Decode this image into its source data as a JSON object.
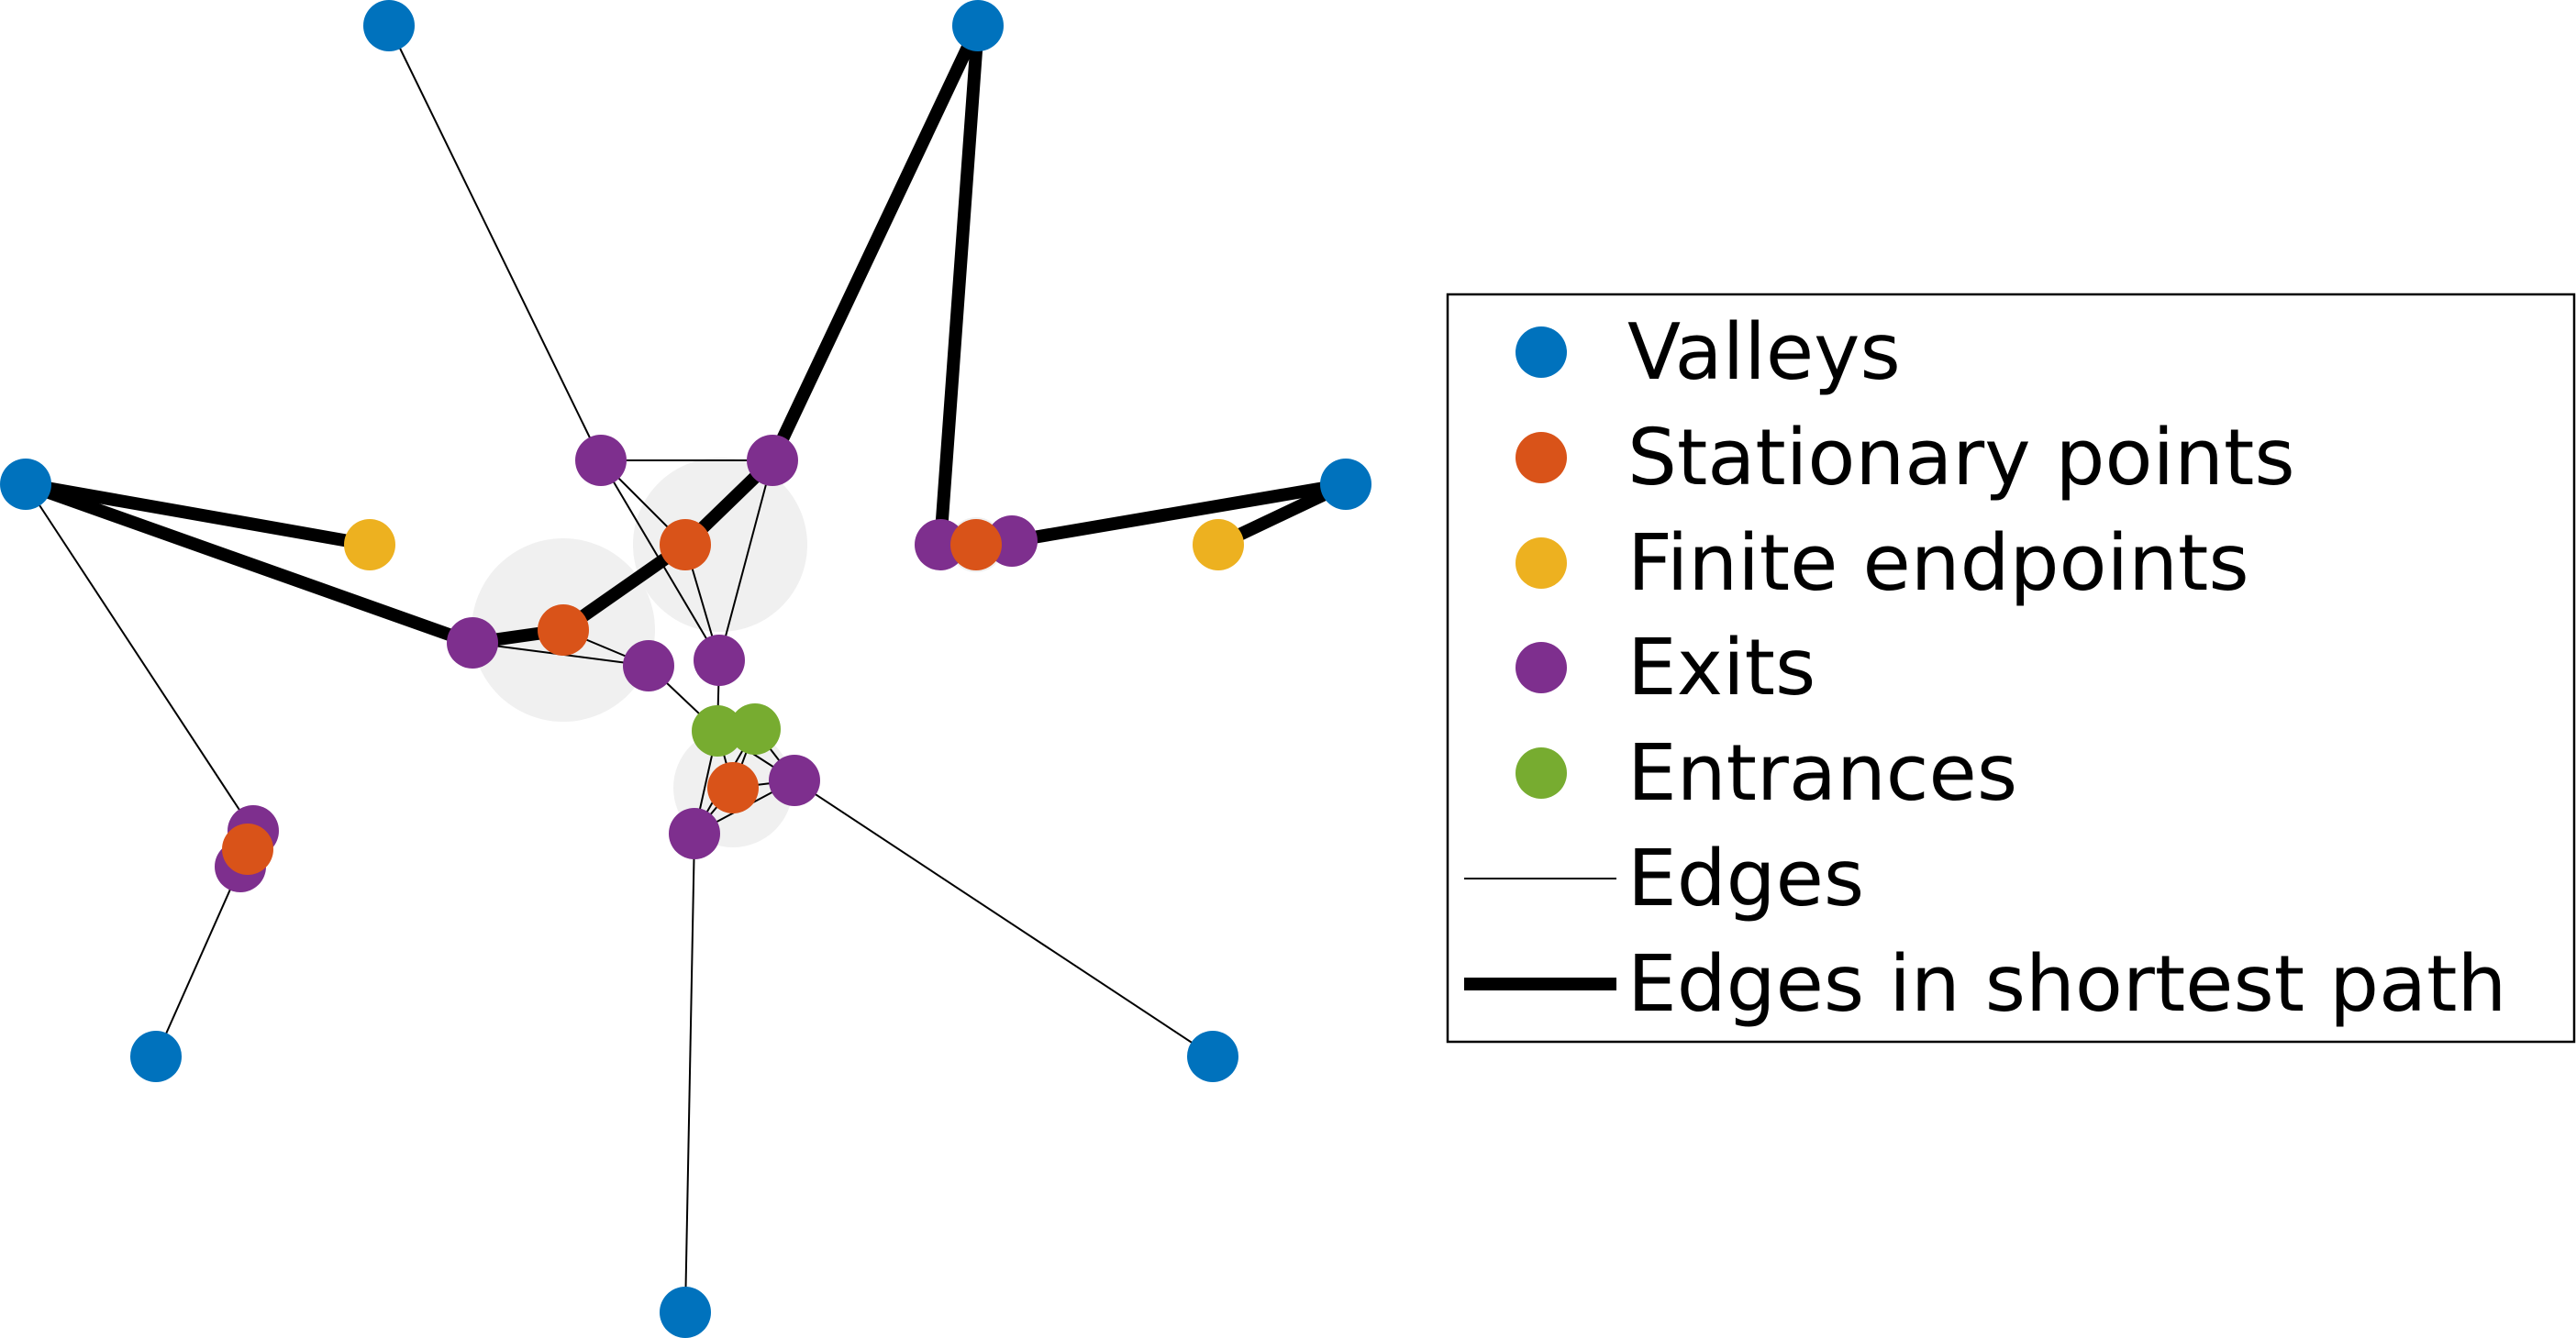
{
  "colors": {
    "valley": "#0072BD",
    "stationary": "#D95319",
    "finite_endpoint": "#EDB120",
    "exit": "#7E2F8E",
    "entrance": "#77AC30",
    "region": "#f0f0f0",
    "edge": "#000000"
  },
  "legend": {
    "valleys": "Valleys",
    "stationary_points": "Stationary points",
    "finite_endpoints": "Finite endpoints",
    "exits": "Exits",
    "entrances": "Entrances",
    "edges": "Edges",
    "shortest_path_edges": "Edges in shortest path"
  }
}
